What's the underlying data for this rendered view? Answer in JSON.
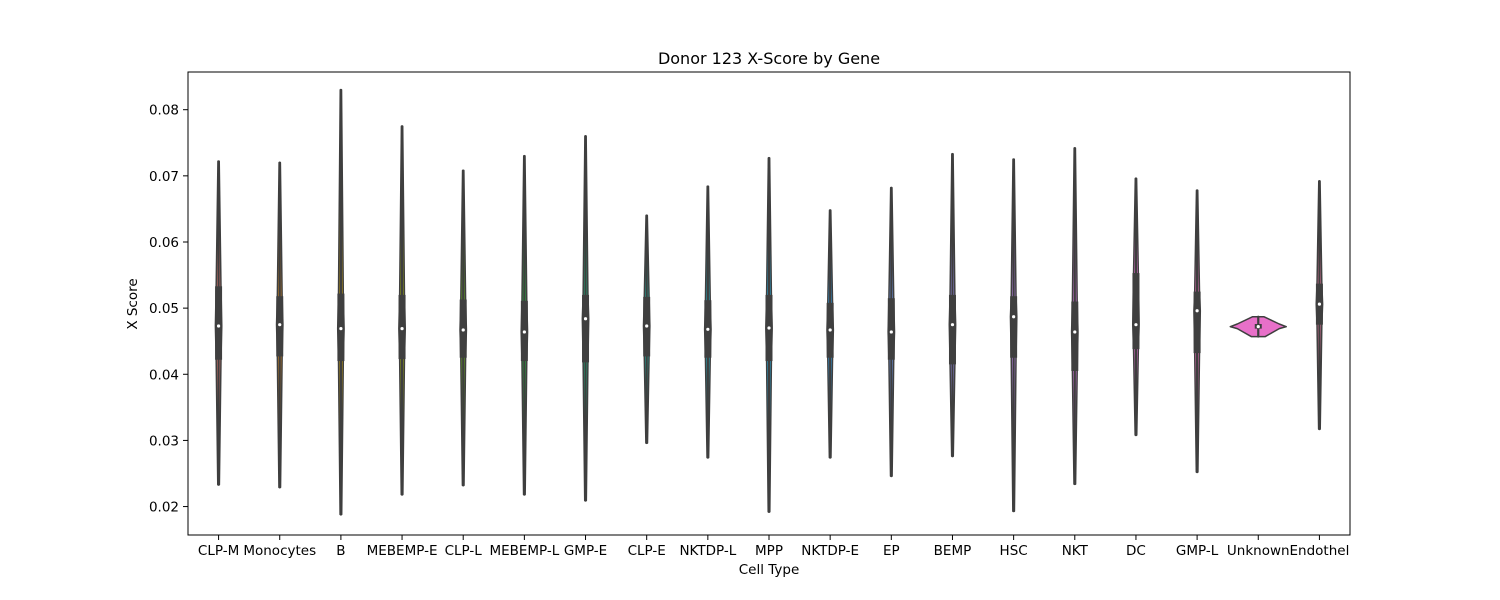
{
  "chart_data": {
    "type": "violin",
    "title": "Donor 123 X-Score by Gene",
    "xlabel": "Cell Type",
    "ylabel": "X Score",
    "ylim": [
      0.0157,
      0.0857
    ],
    "yticks": [
      0.02,
      0.03,
      0.04,
      0.05,
      0.06,
      0.07,
      0.08
    ],
    "ytick_labels": [
      "0.02",
      "0.03",
      "0.04",
      "0.05",
      "0.06",
      "0.07",
      "0.08"
    ],
    "grid": false,
    "legend": "none",
    "categories": [
      "CLP-M",
      "Monocytes",
      "B",
      "MEBEMP-E",
      "CLP-L",
      "MEBEMP-L",
      "GMP-E",
      "CLP-E",
      "NKTDP-L",
      "MPP",
      "NKTDP-E",
      "EP",
      "BEMP",
      "HSC",
      "NKT",
      "DC",
      "GMP-L",
      "Unknown",
      "Endothel"
    ],
    "series": [
      {
        "category": "CLP-M",
        "min": 0.0233,
        "q1": 0.0422,
        "median": 0.0473,
        "q3": 0.0533,
        "max": 0.0722,
        "color": "#e3776d"
      },
      {
        "category": "Monocytes",
        "min": 0.0229,
        "q1": 0.0427,
        "median": 0.0475,
        "q3": 0.0518,
        "max": 0.072,
        "color": "#d0851f"
      },
      {
        "category": "B",
        "min": 0.0188,
        "q1": 0.042,
        "median": 0.0469,
        "q3": 0.0522,
        "max": 0.083,
        "color": "#b89512"
      },
      {
        "category": "MEBEMP-E",
        "min": 0.0218,
        "q1": 0.0423,
        "median": 0.0469,
        "q3": 0.052,
        "max": 0.0775,
        "color": "#95a20f"
      },
      {
        "category": "CLP-L",
        "min": 0.0232,
        "q1": 0.0425,
        "median": 0.0467,
        "q3": 0.0513,
        "max": 0.0708,
        "color": "#64ab1b"
      },
      {
        "category": "MEBEMP-L",
        "min": 0.0218,
        "q1": 0.042,
        "median": 0.0464,
        "q3": 0.0511,
        "max": 0.073,
        "color": "#26b43d"
      },
      {
        "category": "GMP-E",
        "min": 0.0209,
        "q1": 0.0418,
        "median": 0.0484,
        "q3": 0.052,
        "max": 0.076,
        "color": "#18b47b"
      },
      {
        "category": "CLP-E",
        "min": 0.0296,
        "q1": 0.0427,
        "median": 0.0473,
        "q3": 0.0517,
        "max": 0.064,
        "color": "#1cb1a1"
      },
      {
        "category": "NKTDP-L",
        "min": 0.0274,
        "q1": 0.0425,
        "median": 0.0468,
        "q3": 0.0512,
        "max": 0.0684,
        "color": "#1fadbf"
      },
      {
        "category": "MPP",
        "min": 0.0192,
        "q1": 0.042,
        "median": 0.047,
        "q3": 0.052,
        "max": 0.0727,
        "color": "#22a8d8"
      },
      {
        "category": "NKTDP-E",
        "min": 0.0274,
        "q1": 0.0425,
        "median": 0.0467,
        "q3": 0.0508,
        "max": 0.0648,
        "color": "#2ea1ea"
      },
      {
        "category": "EP",
        "min": 0.0246,
        "q1": 0.0422,
        "median": 0.0464,
        "q3": 0.0515,
        "max": 0.0682,
        "color": "#6f98ef"
      },
      {
        "category": "BEMP",
        "min": 0.0276,
        "q1": 0.0415,
        "median": 0.0475,
        "q3": 0.052,
        "max": 0.0733,
        "color": "#9a8ef0"
      },
      {
        "category": "HSC",
        "min": 0.0193,
        "q1": 0.0425,
        "median": 0.0487,
        "q3": 0.0518,
        "max": 0.0725,
        "color": "#bd83ec"
      },
      {
        "category": "NKT",
        "min": 0.0234,
        "q1": 0.0405,
        "median": 0.0464,
        "q3": 0.051,
        "max": 0.0742,
        "color": "#d978e3"
      },
      {
        "category": "DC",
        "min": 0.0308,
        "q1": 0.0438,
        "median": 0.0475,
        "q3": 0.0553,
        "max": 0.0696,
        "color": "#e86fd3"
      },
      {
        "category": "GMP-L",
        "min": 0.0252,
        "q1": 0.0432,
        "median": 0.0496,
        "q3": 0.0525,
        "max": 0.0678,
        "color": "#ea6db9"
      },
      {
        "category": "Unknown",
        "min": 0.0457,
        "q1": 0.0469,
        "median": 0.0472,
        "q3": 0.0476,
        "max": 0.0487,
        "color": "#e870c9"
      },
      {
        "category": "Endothel",
        "min": 0.0317,
        "q1": 0.0475,
        "median": 0.0506,
        "q3": 0.0537,
        "max": 0.0692,
        "color": "#e9779e"
      }
    ]
  }
}
